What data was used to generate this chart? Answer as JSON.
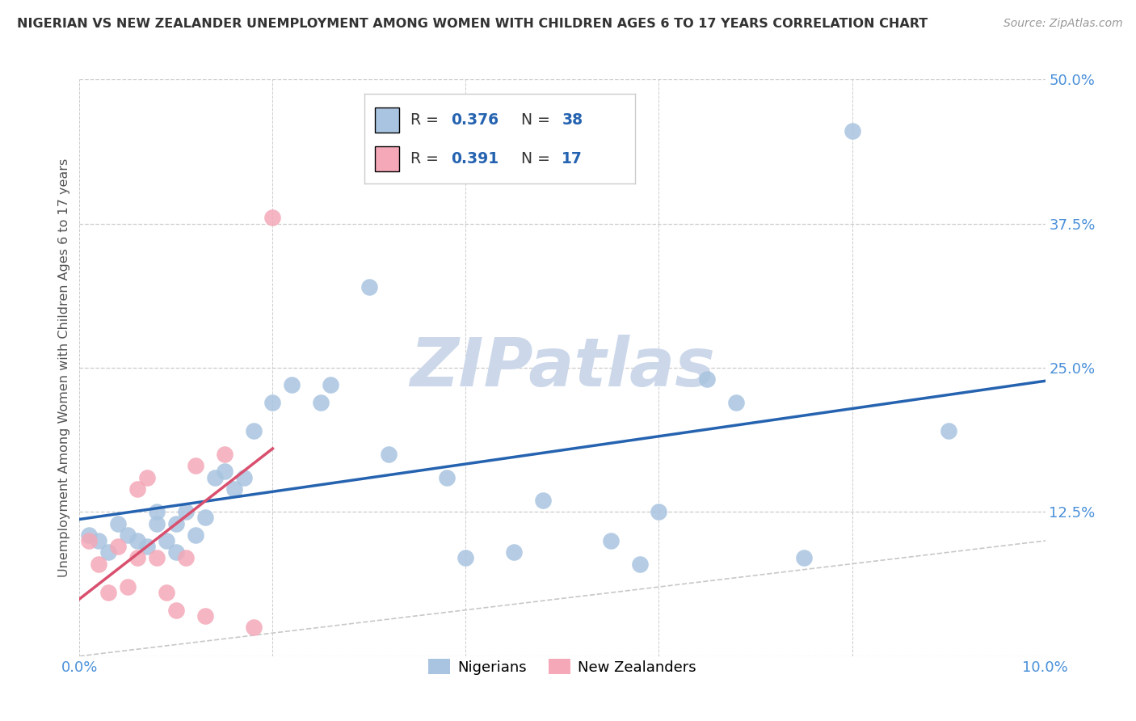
{
  "title": "NIGERIAN VS NEW ZEALANDER UNEMPLOYMENT AMONG WOMEN WITH CHILDREN AGES 6 TO 17 YEARS CORRELATION CHART",
  "source": "Source: ZipAtlas.com",
  "ylabel": "Unemployment Among Women with Children Ages 6 to 17 years",
  "xlim": [
    0,
    0.1
  ],
  "ylim": [
    0,
    0.5
  ],
  "xticks": [
    0.0,
    0.02,
    0.04,
    0.06,
    0.08,
    0.1
  ],
  "yticks": [
    0.0,
    0.125,
    0.25,
    0.375,
    0.5
  ],
  "nigerian_R": 0.376,
  "nigerian_N": 38,
  "nz_R": 0.391,
  "nz_N": 17,
  "nigerian_color": "#a8c4e0",
  "nz_color": "#f4a8b8",
  "nigerian_line_color": "#2563b0",
  "nz_line_color": "#d94f6e",
  "diagonal_color": "#c8c8c8",
  "background_color": "#ffffff",
  "grid_color": "#cccccc",
  "watermark_text": "ZIPatlas",
  "watermark_color": "#ccd8ea",
  "legend_box_color": "#f5f5f5",
  "legend_border_color": "#cccccc",
  "title_color": "#333333",
  "source_color": "#999999",
  "ylabel_color": "#555555",
  "tick_color": "#4a90d9",
  "nigerian_x": [
    0.001,
    0.002,
    0.003,
    0.004,
    0.005,
    0.006,
    0.007,
    0.008,
    0.008,
    0.009,
    0.01,
    0.01,
    0.011,
    0.012,
    0.013,
    0.014,
    0.015,
    0.016,
    0.017,
    0.018,
    0.02,
    0.022,
    0.025,
    0.026,
    0.03,
    0.032,
    0.038,
    0.04,
    0.045,
    0.048,
    0.055,
    0.058,
    0.06,
    0.065,
    0.068,
    0.075,
    0.08,
    0.09
  ],
  "nigerian_y": [
    0.105,
    0.1,
    0.09,
    0.115,
    0.105,
    0.1,
    0.095,
    0.115,
    0.125,
    0.1,
    0.115,
    0.09,
    0.125,
    0.105,
    0.12,
    0.155,
    0.16,
    0.145,
    0.155,
    0.195,
    0.22,
    0.235,
    0.22,
    0.235,
    0.32,
    0.175,
    0.155,
    0.085,
    0.09,
    0.135,
    0.1,
    0.08,
    0.125,
    0.24,
    0.22,
    0.085,
    0.455,
    0.195
  ],
  "nz_x": [
    0.001,
    0.002,
    0.003,
    0.004,
    0.005,
    0.006,
    0.006,
    0.007,
    0.008,
    0.009,
    0.01,
    0.011,
    0.012,
    0.013,
    0.015,
    0.018,
    0.02
  ],
  "nz_y": [
    0.1,
    0.08,
    0.055,
    0.095,
    0.06,
    0.085,
    0.145,
    0.155,
    0.085,
    0.055,
    0.04,
    0.085,
    0.165,
    0.035,
    0.175,
    0.025,
    0.38
  ]
}
